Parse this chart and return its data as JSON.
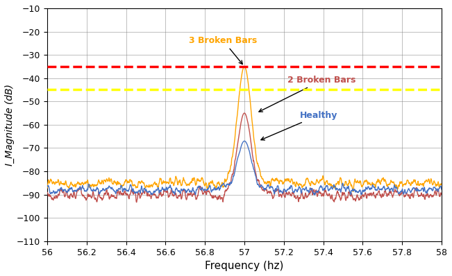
{
  "title": "",
  "xlabel": "Frequency (hz)",
  "ylabel": "I_Magnitude (dB)",
  "xlim": [
    56,
    58
  ],
  "ylim": [
    -110,
    -10
  ],
  "yticks": [
    -10,
    -20,
    -30,
    -40,
    -50,
    -60,
    -70,
    -80,
    -90,
    -100,
    -110
  ],
  "xticks": [
    56,
    56.2,
    56.4,
    56.6,
    56.8,
    57,
    57.2,
    57.4,
    57.6,
    57.8,
    58
  ],
  "hline_3bar_y": -35.0,
  "hline_2bar_y": -45.0,
  "hline_3bar_color": "#FF0000",
  "hline_2bar_color": "#FFFF00",
  "color_healthy": "#4472C4",
  "color_2bar": "#C0504D",
  "color_3bar": "#FFA500",
  "label_3bar": "3 Broken Bars",
  "label_2bar": "2 Broken Bars",
  "label_healthy": "Healthy",
  "peak_freq": 57.0,
  "peak_3bar": -35.0,
  "peak_2bar": -55.0,
  "peak_healthy": -67.0,
  "seed_healthy": 42,
  "seed_2bar": 77,
  "seed_3bar": 13
}
